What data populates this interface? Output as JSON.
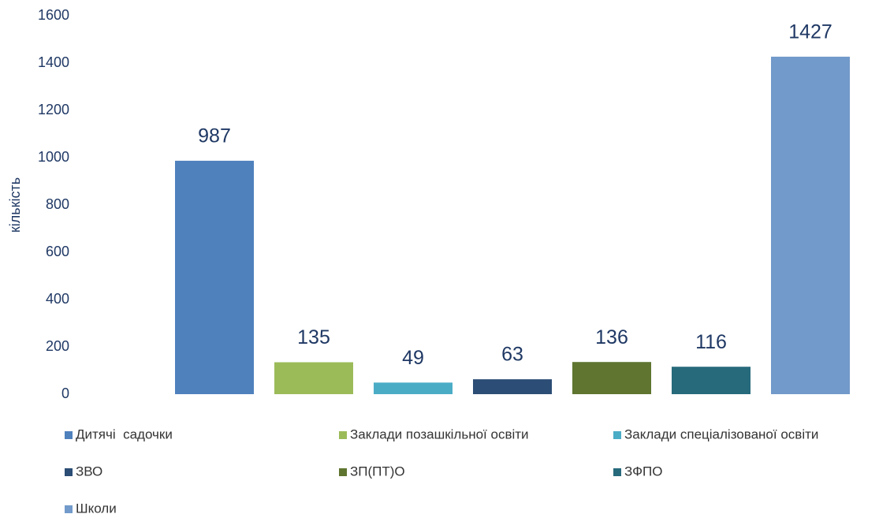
{
  "chart_data": {
    "type": "bar",
    "y_label": "кількість",
    "series": [
      {
        "name": "Дитячі  садочки",
        "color": "#4f81bd",
        "values": [
          987
        ]
      },
      {
        "name": "Заклади позашкільної освіти",
        "color": "#9bbb59",
        "values": [
          135
        ]
      },
      {
        "name": "Заклади спеціалізованої освіти",
        "color": "#4bacc6",
        "values": [
          49
        ]
      },
      {
        "name": "ЗВО",
        "color": "#2c4d75",
        "values": [
          63
        ]
      },
      {
        "name": "ЗП(ПТ)О",
        "color": "#5f7530",
        "values": [
          136
        ]
      },
      {
        "name": "ЗФПО",
        "color": "#276a7c",
        "values": [
          116
        ]
      },
      {
        "name": "Школи",
        "color": "#729aca",
        "values": [
          1427
        ]
      }
    ],
    "ylim": [
      0,
      1600
    ],
    "yticks": [
      0,
      200,
      400,
      600,
      800,
      1000,
      1200,
      1400,
      1600
    ],
    "grid": false,
    "legend": "bottom"
  }
}
